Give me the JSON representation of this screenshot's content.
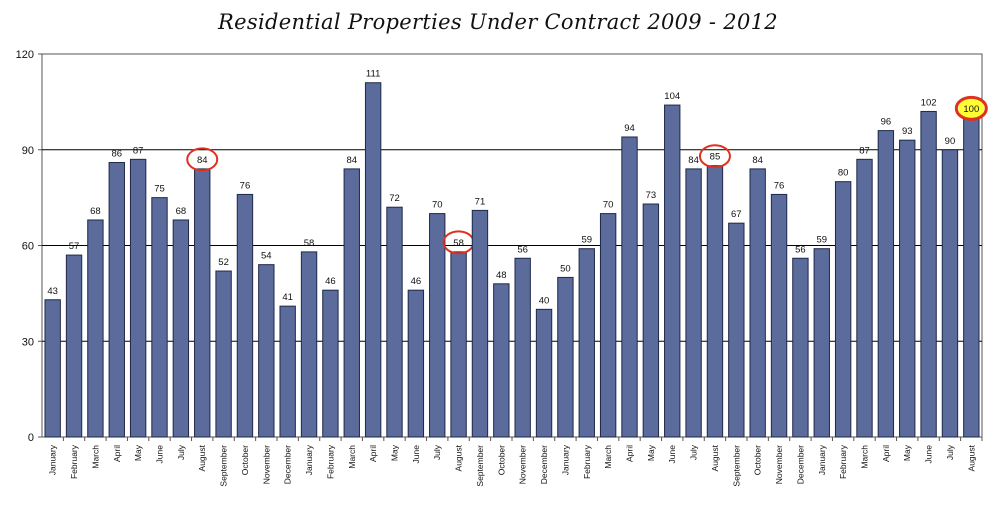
{
  "chart_data": {
    "type": "bar",
    "title": "Residential Properties Under Contract 2009 - 2012",
    "xlabel": "",
    "ylabel": "",
    "ylim": [
      0,
      120
    ],
    "yticks": [
      0,
      30,
      60,
      90,
      120
    ],
    "grid": true,
    "bar_color": "#5a6b9c",
    "highlight_color": "#ffff33",
    "circle_color": "#e0301e",
    "categories": [
      "January",
      "February",
      "March",
      "April",
      "May",
      "June",
      "July",
      "August",
      "September",
      "October",
      "November",
      "December",
      "January",
      "February",
      "March",
      "April",
      "May",
      "June",
      "July",
      "August",
      "September",
      "October",
      "November",
      "December",
      "January",
      "February",
      "March",
      "April",
      "May",
      "June",
      "July",
      "August",
      "September",
      "October",
      "November",
      "December",
      "January",
      "February",
      "March",
      "April",
      "May",
      "June",
      "July",
      "August"
    ],
    "values": [
      43,
      57,
      68,
      86,
      87,
      75,
      68,
      84,
      52,
      76,
      54,
      41,
      58,
      46,
      84,
      111,
      72,
      46,
      70,
      58,
      71,
      48,
      56,
      40,
      50,
      59,
      70,
      94,
      73,
      104,
      84,
      85,
      67,
      84,
      76,
      56,
      59,
      80,
      87,
      96,
      93,
      102,
      90,
      100
    ],
    "circled_indices": [
      7,
      19,
      31,
      43
    ],
    "highlighted_indices": [
      43
    ]
  }
}
